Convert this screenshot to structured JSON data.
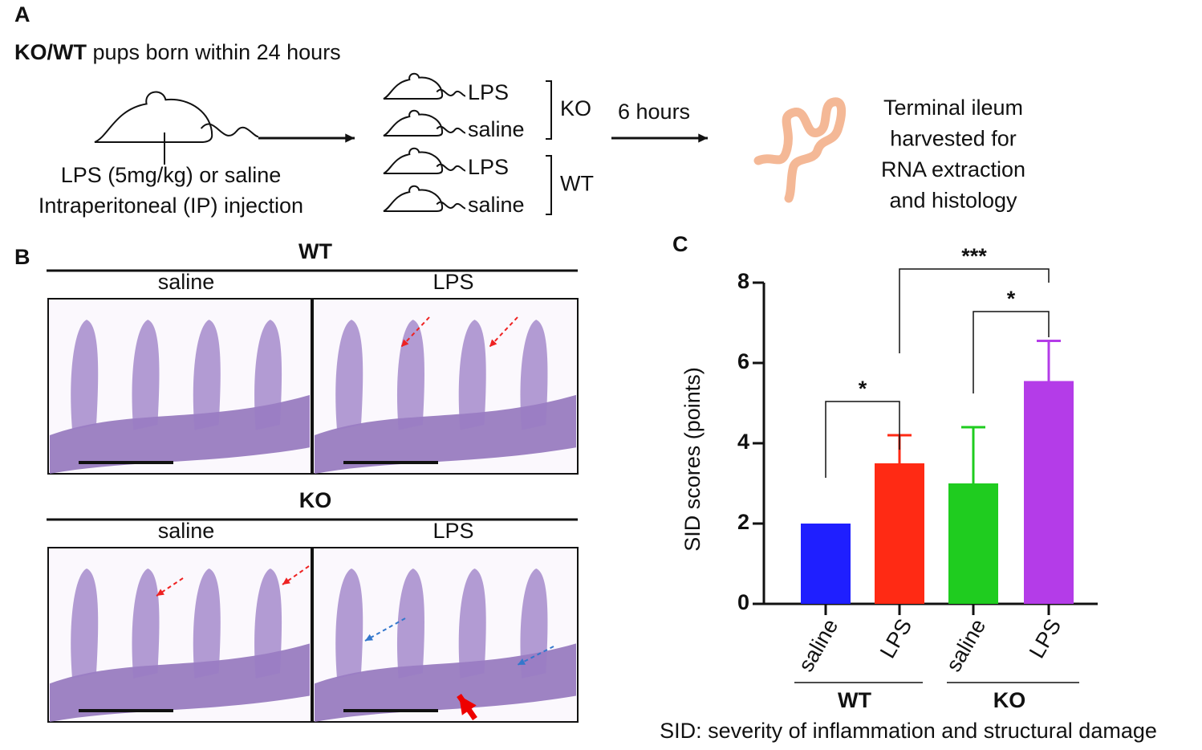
{
  "panel_a": {
    "label": "A",
    "title_bold": "KO/WT",
    "title_rest": " pups born within 24 hours",
    "injection": [
      "LPS (5mg/kg) or saline",
      "Intraperitoneal (IP) injection"
    ],
    "groups": [
      {
        "name": "KO",
        "treatments": [
          "LPS",
          "saline"
        ]
      },
      {
        "name": "WT",
        "treatments": [
          "LPS",
          "saline"
        ]
      }
    ],
    "time": "6 hours",
    "harvest": [
      "Terminal ileum",
      "harvested for",
      "RNA extraction",
      "and histology"
    ]
  },
  "panel_b": {
    "label": "B",
    "rows": [
      {
        "genotype": "WT",
        "columns": [
          "saline",
          "LPS"
        ]
      },
      {
        "genotype": "KO",
        "columns": [
          "saline",
          "LPS"
        ]
      }
    ]
  },
  "chart_data": {
    "type": "bar",
    "label": "C",
    "y_label": "SID scores (points)",
    "categories": [
      "saline",
      "LPS",
      "saline",
      "LPS"
    ],
    "group_labels": [
      "WT",
      "KO"
    ],
    "values": [
      2,
      3.5,
      3,
      5.55
    ],
    "errors": [
      null,
      0.7,
      1.4,
      1.0
    ],
    "colors": [
      "#1f1fff",
      "#ff2a14",
      "#1fcc1f",
      "#b43ce8"
    ],
    "ylim": [
      0,
      8
    ],
    "yticks": [
      0,
      2,
      4,
      6,
      8
    ],
    "significance": [
      "*",
      "***",
      "*"
    ],
    "footnote": "SID: severity of inflammation and structural damage"
  }
}
